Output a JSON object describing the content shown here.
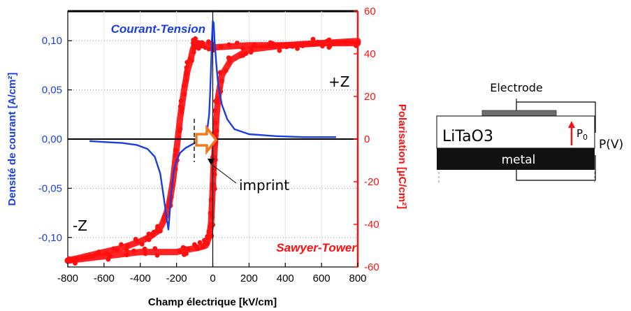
{
  "chart_data": {
    "type": "line",
    "title": "",
    "xlabel": "Champ électrique [kV/cm]",
    "y_left_label": "Densité de courant [A/cm²]",
    "y_right_label": "Polarisation [µC/cm²]",
    "xlim": [
      -800,
      800
    ],
    "ylim_left": [
      -0.13,
      0.13
    ],
    "ylim_right": [
      -60,
      60
    ],
    "x_ticks": [
      "-800",
      "-600",
      "-400",
      "-200",
      "0",
      "200",
      "400",
      "600",
      "800"
    ],
    "y_left_ticks": [
      "-0,10",
      "-0,05",
      "0,00",
      "0,05",
      "0,10"
    ],
    "y_right_ticks": [
      "-60",
      "-40",
      "-20",
      "0",
      "20",
      "40",
      "60"
    ],
    "colors": {
      "current": "#1a3fe0",
      "polarisation": "#ff1010",
      "arrow": "#f07a20"
    },
    "series": [
      {
        "name": "Courant-Tension",
        "axis": "left",
        "x": [
          -680,
          -600,
          -500,
          -420,
          -360,
          -320,
          -290,
          -270,
          -255,
          -245,
          -240,
          -230,
          -215,
          -200,
          -180,
          -150,
          -120,
          -90,
          -60,
          -40,
          -30,
          -20,
          -15,
          -10,
          -5,
          0,
          5,
          10,
          20,
          30,
          50,
          80,
          120,
          200,
          350,
          500,
          680
        ],
        "y": [
          -0.002,
          -0.003,
          -0.004,
          -0.006,
          -0.01,
          -0.018,
          -0.035,
          -0.06,
          -0.08,
          -0.092,
          -0.08,
          -0.055,
          -0.032,
          -0.022,
          -0.014,
          -0.009,
          -0.006,
          -0.003,
          0.0,
          0.004,
          0.01,
          0.025,
          0.045,
          0.07,
          0.1,
          0.12,
          0.118,
          0.1,
          0.075,
          0.055,
          0.035,
          0.02,
          0.01,
          0.005,
          0.003,
          0.002,
          0.002
        ]
      },
      {
        "name": "Sawyer-Tower",
        "axis": "right",
        "branches": [
          {
            "x": [
              -800,
              -600,
              -500,
              -400,
              -350,
              -300,
              -280,
              -260,
              -240,
              -220,
              -200,
              -180,
              -160,
              -140,
              -120,
              -110,
              -100,
              -95,
              -90,
              -80,
              -60,
              -20,
              0,
              200,
              400,
              600,
              800
            ],
            "y": [
              -57,
              -53,
              -51,
              -48,
              -46,
              -43,
              -40,
              -36,
              -30,
              -20,
              -5,
              10,
              22,
              32,
              38,
              42,
              44,
              45,
              45,
              45,
              44,
              44,
              43,
              44,
              44,
              45,
              45
            ]
          },
          {
            "x": [
              800,
              600,
              400,
              200,
              100,
              50,
              30,
              20,
              15,
              10,
              5,
              0,
              -5,
              -10,
              -20,
              -40,
              -80,
              -150,
              -200,
              -400,
              -600,
              -800
            ],
            "y": [
              46,
              45,
              44,
              42,
              37,
              30,
              20,
              10,
              2,
              -5,
              -12,
              -22,
              -32,
              -40,
              -46,
              -50,
              -51,
              -52,
              -53,
              -53,
              -55,
              -57
            ]
          }
        ]
      }
    ],
    "curve_labels": {
      "current": "Courant-Tension",
      "polarisation": "Sawyer-Tower"
    },
    "annotations": {
      "pos_face": "+Z",
      "neg_face": "-Z",
      "imprint": "imprint"
    }
  },
  "diagram": {
    "electrode_label": "Electrode",
    "crystal_label": "LiTaO3",
    "base_label": "metal",
    "polarisation_symbol": "P",
    "polarisation_subscript": "0",
    "voltage_label": "P(V)"
  }
}
